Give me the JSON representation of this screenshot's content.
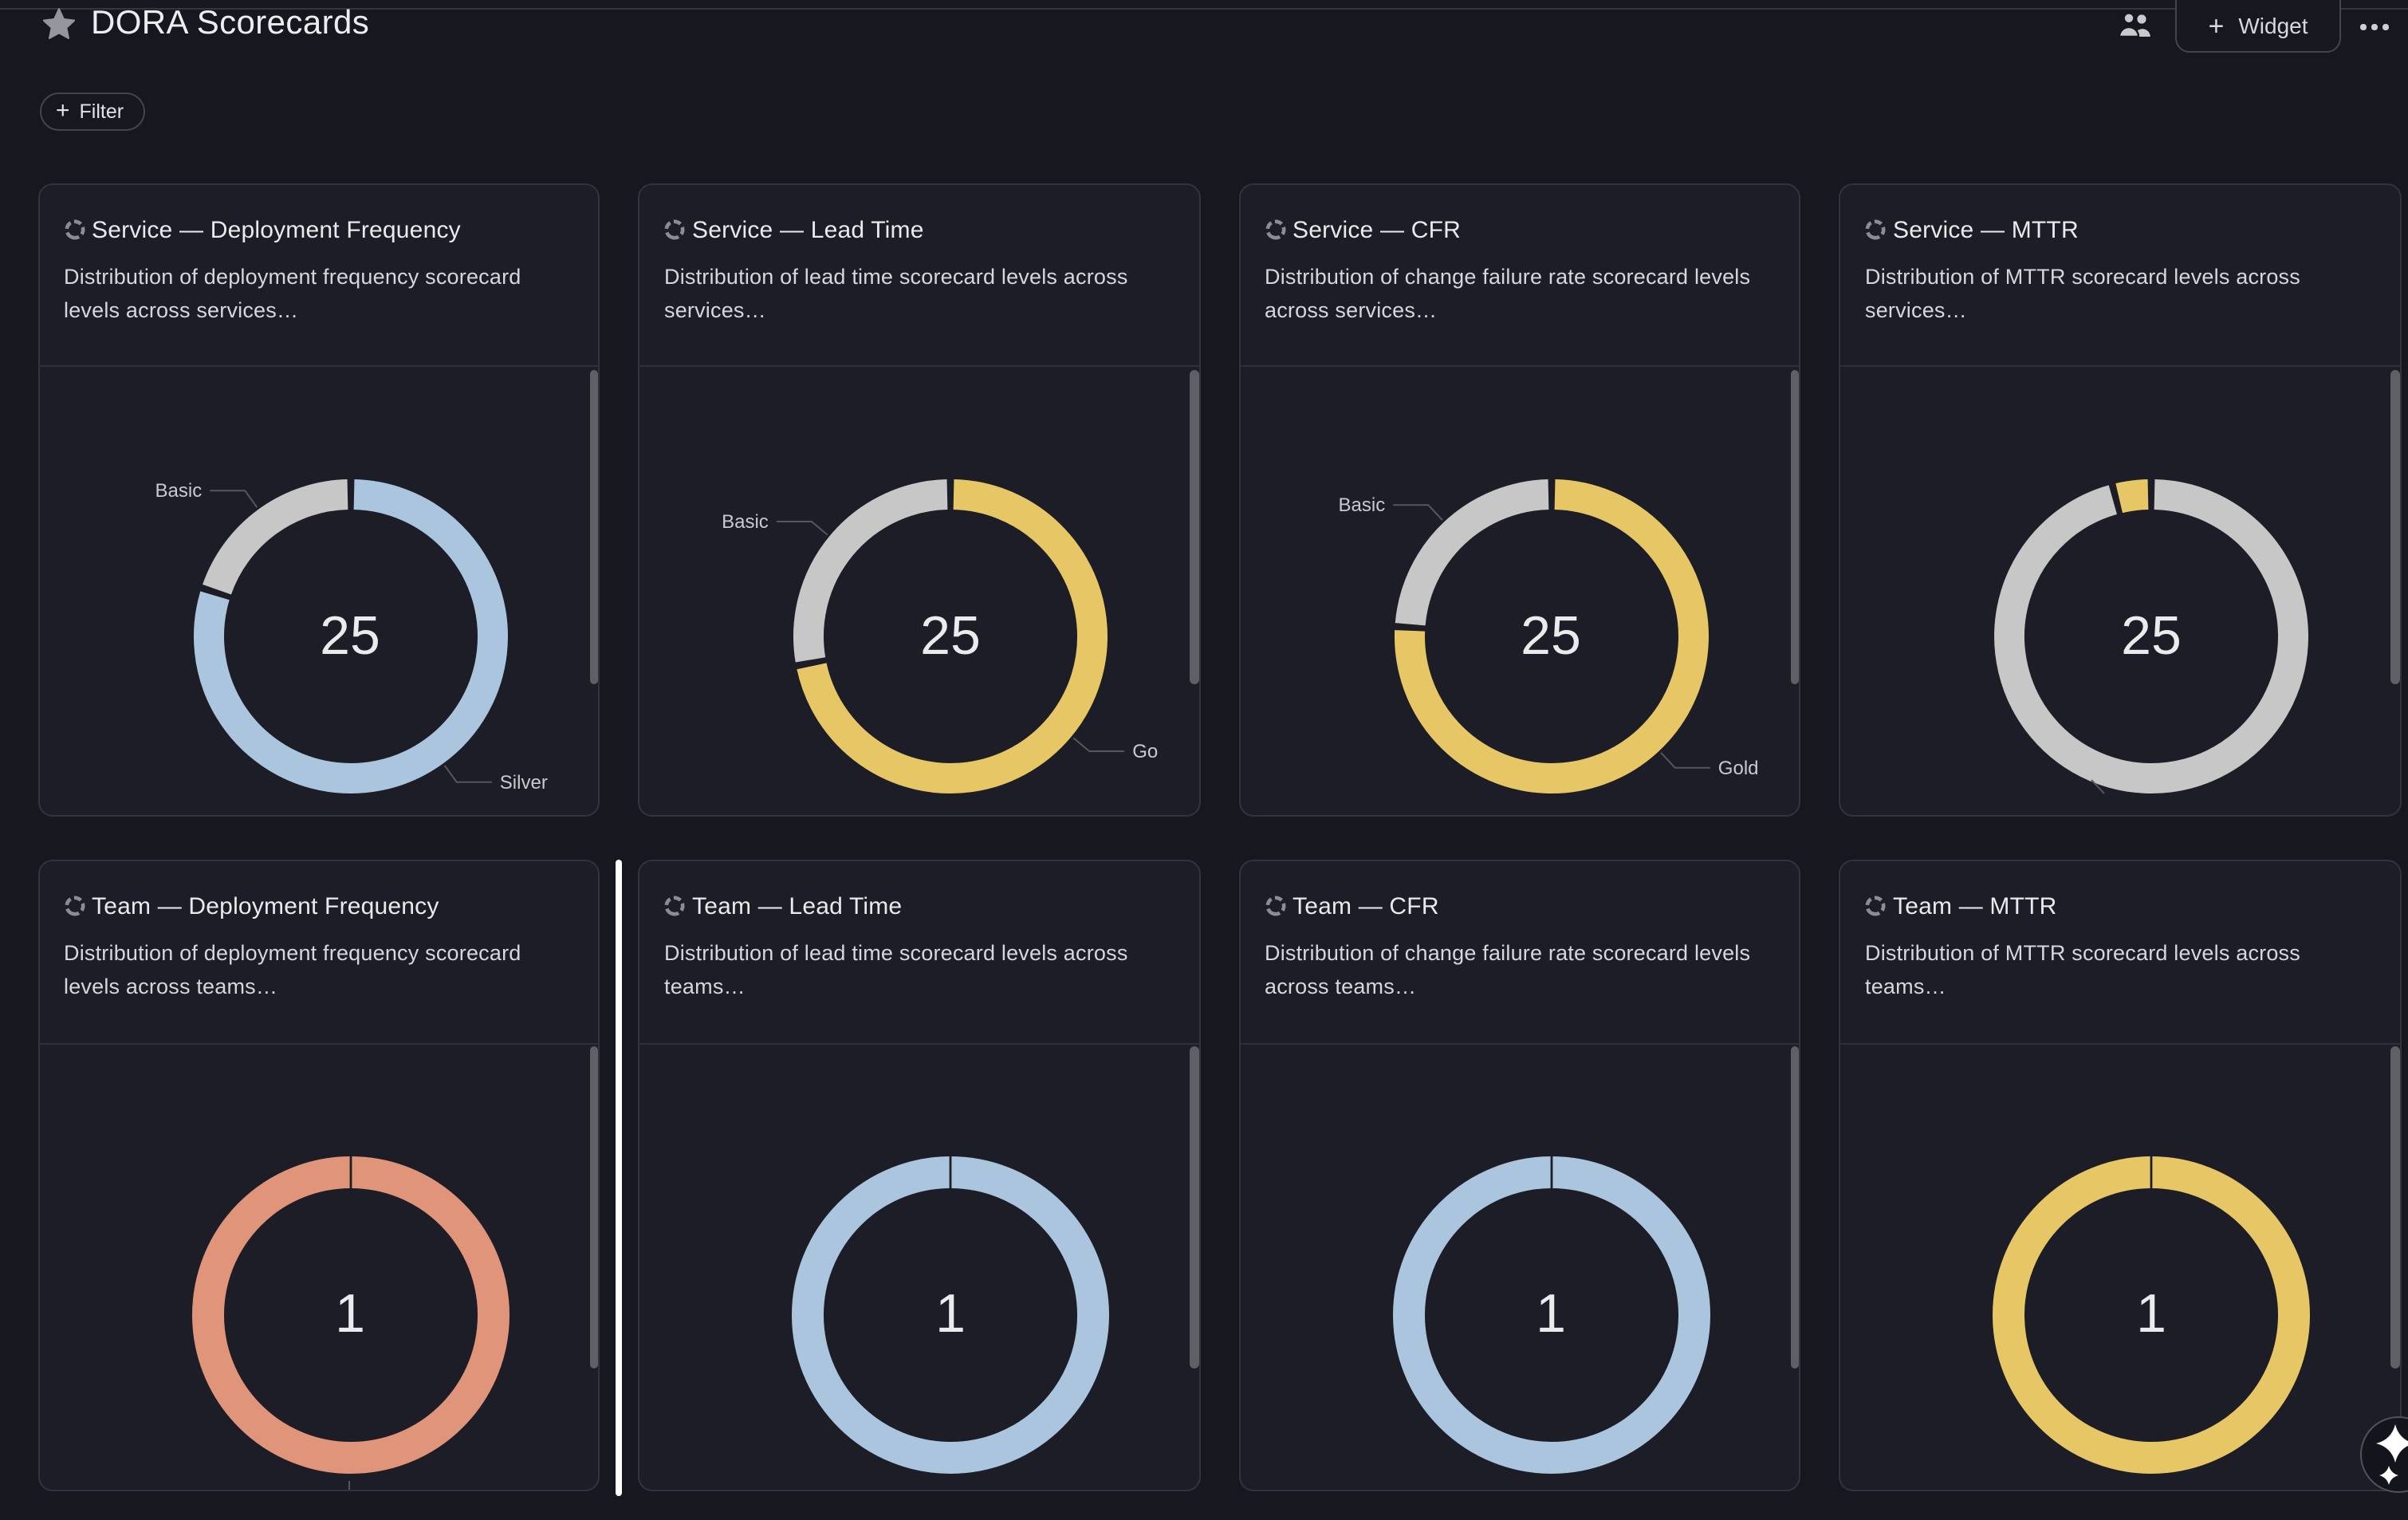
{
  "header": {
    "title": "DORA Scorecards",
    "widget_button_label": "Widget",
    "plus_glyph": "+"
  },
  "toolbar": {
    "filter_button_label": "Filter"
  },
  "palette": {
    "page_bg": "#16171f",
    "card_bg": "#1c1d26",
    "card_border": "#32333c",
    "divider": "#2e2f38",
    "title_text": "#e9eaec",
    "body_text": "#d6d7db",
    "muted_label": "#c9cacf",
    "leader_line": "#55565e",
    "scrollbar_thumb": "#5e6066",
    "insert_indicator": "#ffffff",
    "level_basic": "#c7c7c8",
    "level_silver": "#abc5de",
    "level_gold": "#e7c765",
    "level_bronze": "#e0947a"
  },
  "chart_data": [
    {
      "type": "donut",
      "title": "Service — Deployment Frequency",
      "description": "Distribution of deployment frequency scorecard levels across services…",
      "total": "25",
      "segments": [
        {
          "name": "Silver",
          "value": 20,
          "color": "#abc5de",
          "label_visible": true
        },
        {
          "name": "Basic",
          "value": 5,
          "color": "#c7c7c8",
          "label_visible": true
        }
      ],
      "cut_leader": null
    },
    {
      "type": "donut",
      "title": "Service — Lead Time",
      "description": "Distribution of lead time scorecard levels across services…",
      "total": "25",
      "segments": [
        {
          "name": "Go",
          "value": 18,
          "color": "#e7c765",
          "label_visible": true
        },
        {
          "name": "Basic",
          "value": 7,
          "color": "#c7c7c8",
          "label_visible": true
        }
      ],
      "cut_leader": null
    },
    {
      "type": "donut",
      "title": "Service — CFR",
      "description": "Distribution of change failure rate scorecard levels across services…",
      "total": "25",
      "segments": [
        {
          "name": "Gold",
          "value": 19,
          "color": "#e7c765",
          "label_visible": true
        },
        {
          "name": "Basic",
          "value": 6,
          "color": "#c7c7c8",
          "label_visible": true
        }
      ],
      "cut_leader": null
    },
    {
      "type": "donut",
      "title": "Service — MTTR",
      "description": "Distribution of MTTR scorecard levels across services…",
      "total": "25",
      "segments": [
        {
          "name": "",
          "value": 24,
          "color": "#c7c7c8",
          "label_visible": false
        },
        {
          "name": "",
          "value": 1,
          "color": "#e7c765",
          "label_visible": false
        }
      ],
      "cut_leader": "diagonal"
    },
    {
      "type": "donut",
      "title": "Team — Deployment Frequency",
      "description": "Distribution of deployment frequency scorecard levels across teams…",
      "total": "1",
      "segments": [
        {
          "name": "",
          "value": 1,
          "color": "#e0947a",
          "label_visible": false
        }
      ],
      "cut_leader": "vertical"
    },
    {
      "type": "donut",
      "title": "Team — Lead Time",
      "description": "Distribution of lead time scorecard levels across teams…",
      "total": "1",
      "segments": [
        {
          "name": "",
          "value": 1,
          "color": "#abc5de",
          "label_visible": false
        }
      ],
      "cut_leader": null
    },
    {
      "type": "donut",
      "title": "Team — CFR",
      "description": "Distribution of change failure rate scorecard levels across teams…",
      "total": "1",
      "segments": [
        {
          "name": "",
          "value": 1,
          "color": "#abc5de",
          "label_visible": false
        }
      ],
      "cut_leader": null
    },
    {
      "type": "donut",
      "title": "Team — MTTR",
      "description": "Distribution of MTTR scorecard levels across teams…",
      "total": "1",
      "segments": [
        {
          "name": "",
          "value": 1,
          "color": "#e7c765",
          "label_visible": false
        }
      ],
      "cut_leader": null
    }
  ]
}
